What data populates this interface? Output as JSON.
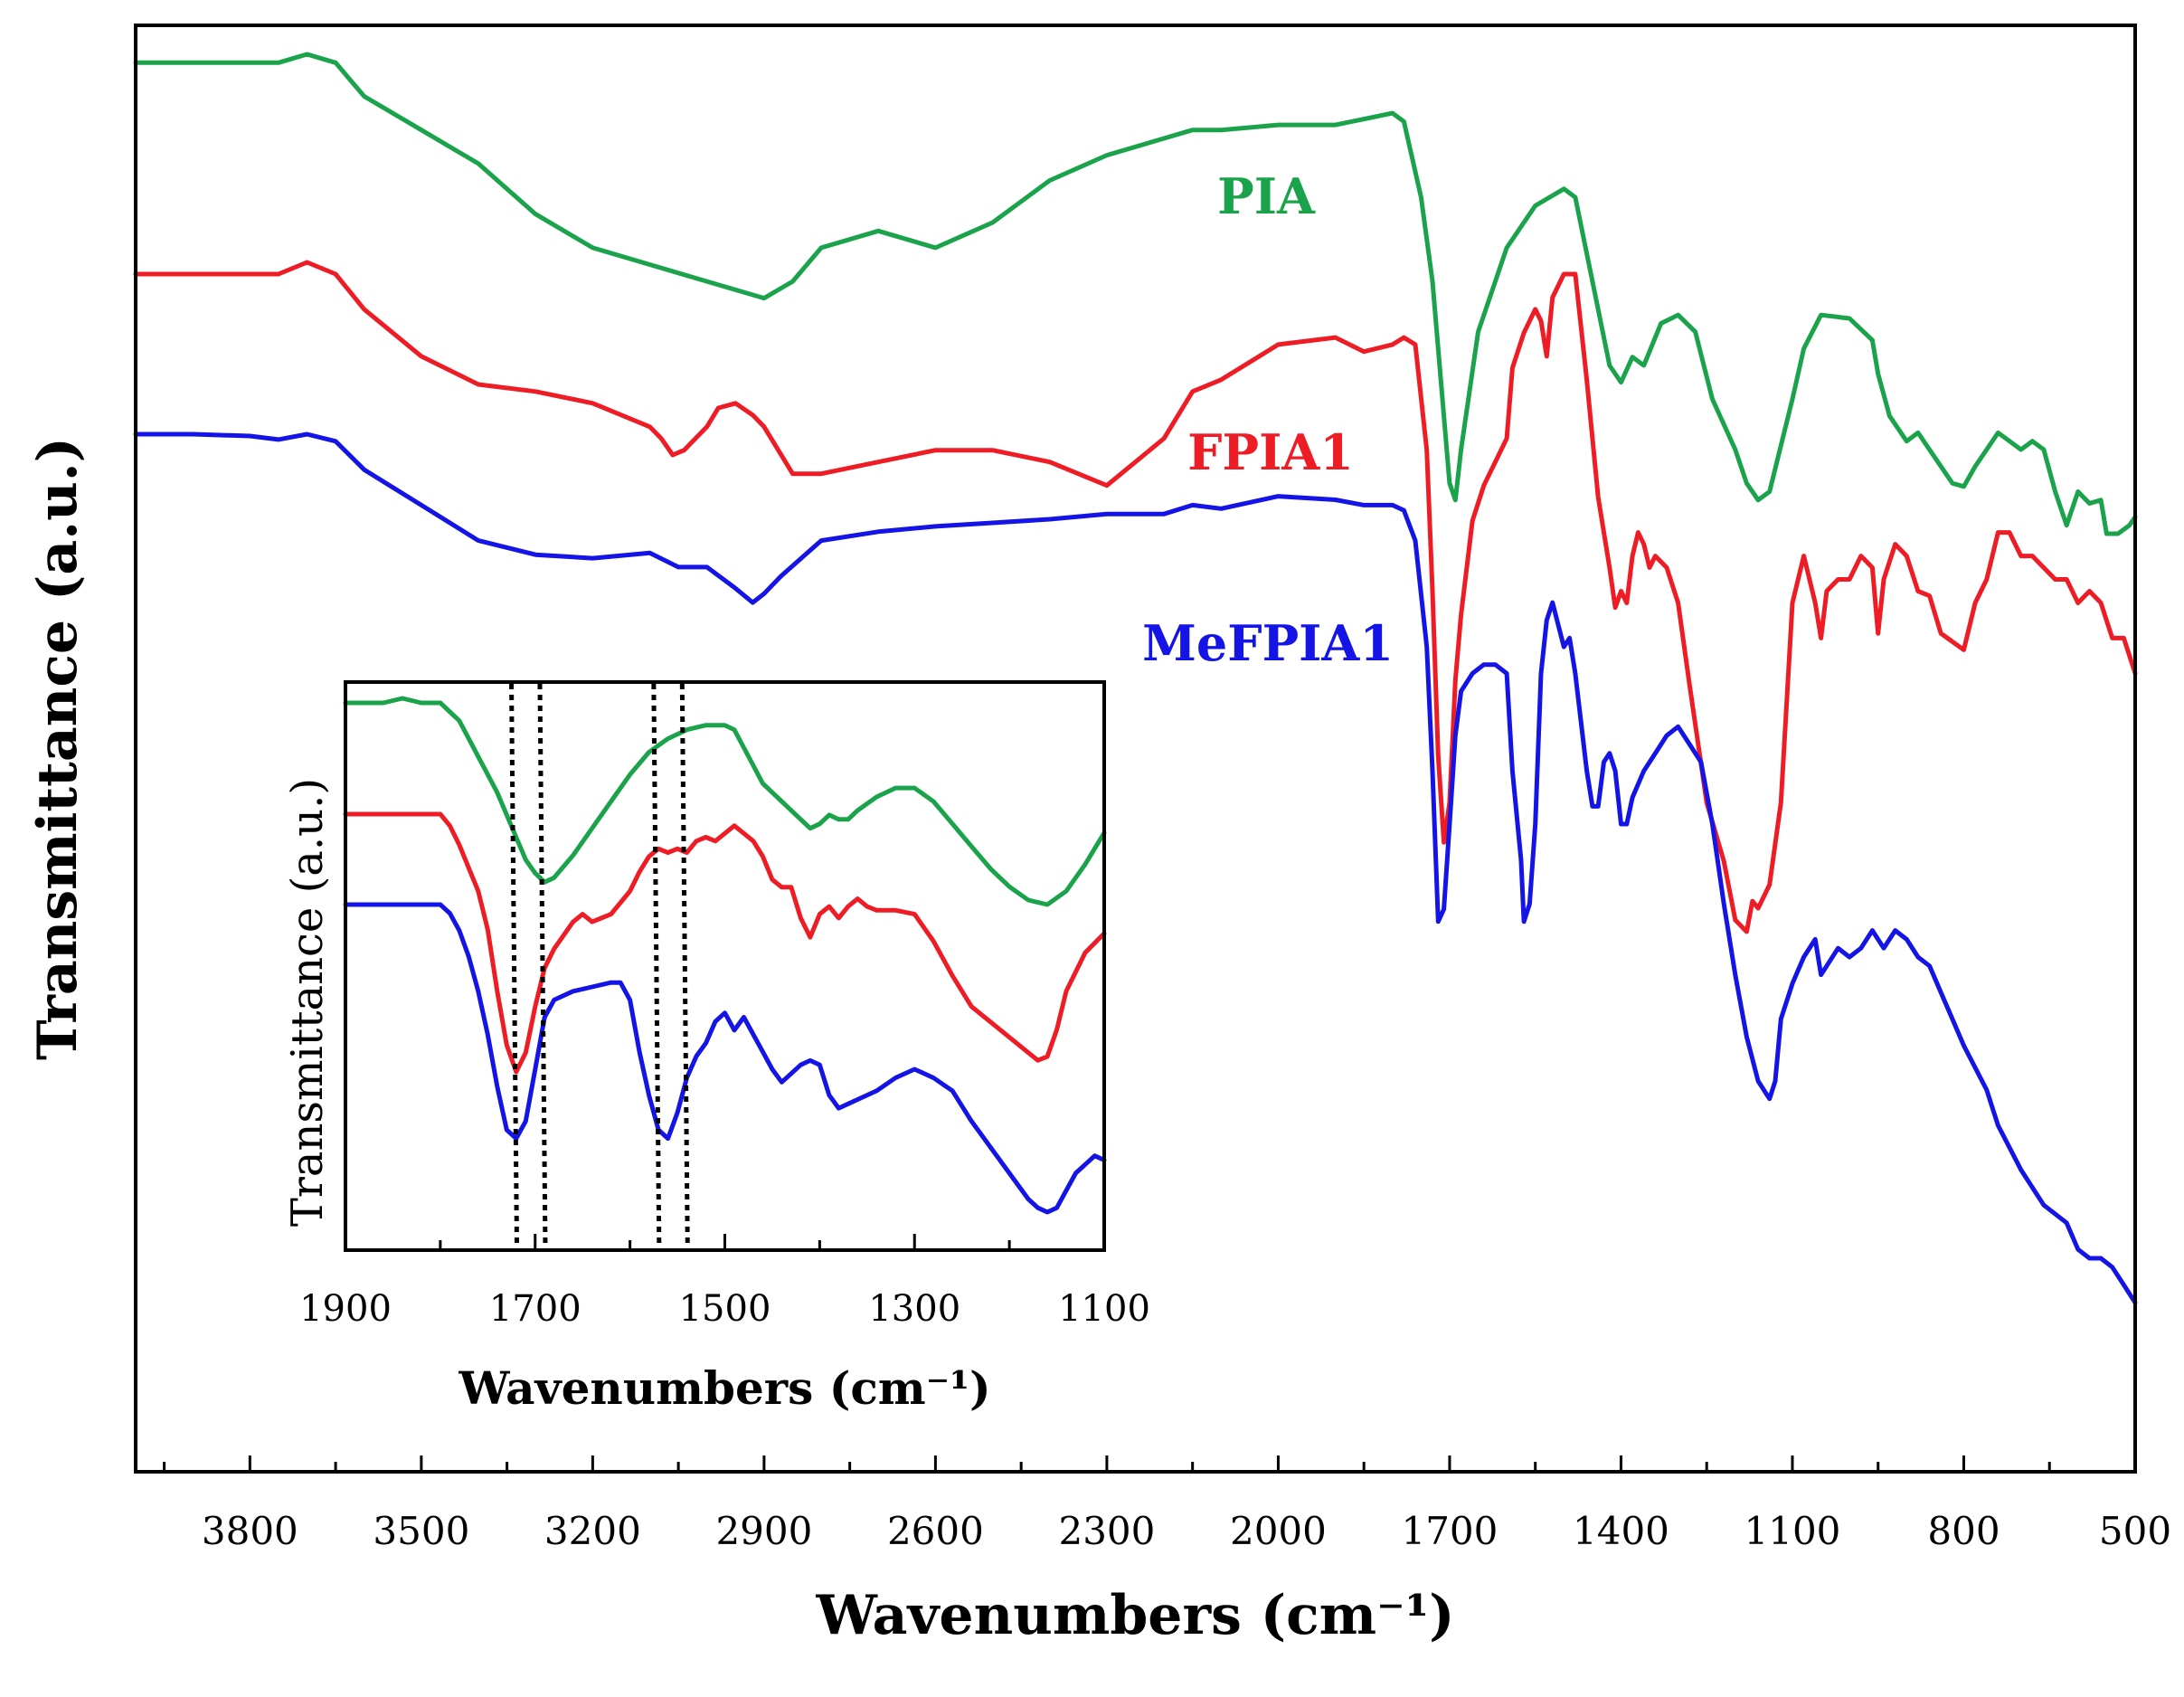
{
  "chart_data": [
    {
      "type": "line",
      "name": "main",
      "title": "",
      "xlabel": "Wavenumbers (cm⁻¹)",
      "ylabel": "Transmittance (a.u.)",
      "xlim": [
        4000,
        500
      ],
      "x_reversed": true,
      "ylim": [
        0,
        100
      ],
      "x_ticks": [
        3800,
        3500,
        3200,
        2900,
        2600,
        2300,
        2000,
        1700,
        1400,
        1100,
        800,
        500
      ],
      "x_ticks_labels": [
        "3800",
        "3500",
        "3200",
        "2900",
        "2600",
        "2300",
        "2000",
        "1700",
        "1400",
        "1100",
        "800",
        "500"
      ],
      "y_ticks_visible": false,
      "legend": "inline labels",
      "series": [
        {
          "name": "PIA",
          "color": "#1aa34a",
          "x": [
            4000,
            3900,
            3800,
            3750,
            3700,
            3650,
            3600,
            3500,
            3400,
            3300,
            3200,
            3100,
            3000,
            2950,
            2900,
            2850,
            2800,
            2700,
            2600,
            2500,
            2400,
            2300,
            2200,
            2150,
            2100,
            2000,
            1900,
            1800,
            1780,
            1750,
            1730,
            1710,
            1700,
            1690,
            1680,
            1650,
            1600,
            1550,
            1500,
            1480,
            1450,
            1420,
            1400,
            1380,
            1360,
            1330,
            1300,
            1270,
            1240,
            1200,
            1180,
            1160,
            1140,
            1100,
            1080,
            1050,
            1000,
            960,
            950,
            930,
            900,
            880,
            850,
            820,
            800,
            780,
            760,
            740,
            700,
            680,
            660,
            640,
            620,
            600,
            580,
            560,
            550,
            530,
            510,
            500
          ],
          "y": [
            95,
            95,
            95,
            95,
            95.5,
            95,
            93,
            91,
            89,
            86,
            84,
            83,
            82,
            81.5,
            81,
            82,
            84,
            85,
            84,
            85.5,
            88,
            89.5,
            90.5,
            91,
            91,
            91.3,
            91.3,
            92,
            91.5,
            87,
            82,
            74,
            70,
            69,
            72,
            79,
            84,
            86.5,
            87.5,
            87,
            82,
            77,
            76,
            77.5,
            77,
            79.5,
            80,
            79,
            75,
            72,
            70,
            69,
            69.5,
            75,
            78,
            80,
            79.8,
            78.5,
            76.5,
            74,
            72.5,
            73,
            71.5,
            70,
            69.8,
            71,
            72,
            73,
            72,
            72.5,
            72,
            69.5,
            67.5,
            69.5,
            68.8,
            69,
            67,
            67,
            67.5,
            68
          ]
        },
        {
          "name": "FPIA1",
          "color": "#ee1c25",
          "x": [
            4000,
            3900,
            3800,
            3750,
            3700,
            3650,
            3600,
            3500,
            3400,
            3300,
            3200,
            3100,
            3080,
            3060,
            3040,
            3000,
            2980,
            2950,
            2920,
            2900,
            2850,
            2800,
            2700,
            2600,
            2500,
            2400,
            2300,
            2200,
            2150,
            2100,
            2000,
            1900,
            1850,
            1800,
            1780,
            1760,
            1740,
            1730,
            1720,
            1710,
            1700,
            1690,
            1680,
            1660,
            1640,
            1600,
            1590,
            1570,
            1550,
            1540,
            1530,
            1520,
            1500,
            1480,
            1460,
            1440,
            1420,
            1410,
            1400,
            1390,
            1380,
            1370,
            1360,
            1350,
            1340,
            1320,
            1300,
            1280,
            1250,
            1220,
            1200,
            1180,
            1170,
            1160,
            1140,
            1120,
            1100,
            1080,
            1060,
            1050,
            1040,
            1020,
            1000,
            980,
            960,
            950,
            940,
            920,
            900,
            880,
            860,
            840,
            800,
            780,
            760,
            740,
            720,
            700,
            680,
            660,
            640,
            620,
            600,
            580,
            560,
            540,
            520,
            500
          ],
          "y": [
            85.5,
            85.5,
            85.5,
            85.5,
            86,
            85.5,
            84,
            82,
            80.8,
            80.5,
            80,
            79,
            78.5,
            77.8,
            78,
            79,
            79.8,
            80,
            79.5,
            79,
            77,
            77,
            77.5,
            78,
            78,
            77.5,
            76.5,
            78.5,
            80.5,
            81,
            82.5,
            82.8,
            82.2,
            82.5,
            82.8,
            82.5,
            78,
            72,
            65,
            61.3,
            63,
            68.2,
            71,
            75,
            76.5,
            78.5,
            81.5,
            83,
            84,
            83.5,
            82,
            84.5,
            85.5,
            85.5,
            81,
            76,
            73,
            71.3,
            72,
            71.5,
            73.5,
            74.5,
            74,
            73,
            73.5,
            73,
            71.5,
            68,
            63,
            60.5,
            58,
            57.5,
            58.8,
            58.5,
            59.5,
            63,
            71.5,
            73.5,
            71.5,
            70,
            72,
            72.5,
            72.5,
            73.5,
            73,
            70.2,
            72.5,
            74,
            73.5,
            72,
            71.8,
            70.2,
            69.5,
            71.5,
            72.5,
            74.5,
            74.5,
            73.5,
            73.5,
            73,
            72.5,
            72.5,
            71.5,
            72,
            71.5,
            70,
            70,
            68.5
          ]
        },
        {
          "name": "MeFPIA1",
          "color": "#1414e6",
          "x": [
            4000,
            3900,
            3800,
            3750,
            3700,
            3650,
            3600,
            3500,
            3400,
            3300,
            3200,
            3100,
            3050,
            3000,
            2950,
            2920,
            2900,
            2870,
            2800,
            2700,
            2600,
            2500,
            2400,
            2300,
            2200,
            2150,
            2100,
            2000,
            1900,
            1850,
            1800,
            1780,
            1760,
            1740,
            1730,
            1720,
            1710,
            1700,
            1690,
            1680,
            1660,
            1640,
            1620,
            1600,
            1590,
            1575,
            1570,
            1560,
            1550,
            1540,
            1530,
            1520,
            1500,
            1490,
            1480,
            1460,
            1450,
            1440,
            1430,
            1420,
            1410,
            1400,
            1390,
            1380,
            1360,
            1340,
            1320,
            1300,
            1280,
            1260,
            1240,
            1220,
            1200,
            1180,
            1160,
            1140,
            1130,
            1120,
            1100,
            1080,
            1060,
            1050,
            1040,
            1020,
            1000,
            980,
            960,
            950,
            940,
            920,
            900,
            880,
            860,
            840,
            820,
            800,
            760,
            740,
            700,
            660,
            620,
            600,
            580,
            560,
            540,
            520,
            500
          ],
          "y": [
            77,
            77,
            76.9,
            76.7,
            77,
            76.6,
            75,
            73,
            71,
            70.2,
            70,
            70.3,
            69.5,
            69.5,
            68.3,
            67.5,
            68,
            69,
            71,
            71.5,
            71.8,
            72,
            72.2,
            72.5,
            72.5,
            73,
            72.8,
            73.5,
            73.3,
            73,
            73,
            72.7,
            71,
            65,
            58,
            49.5,
            50.2,
            55,
            60,
            62.5,
            63.5,
            64,
            64,
            63.5,
            58,
            53,
            49.5,
            50.5,
            55,
            63.5,
            66.5,
            67.5,
            65,
            65.5,
            63.5,
            58,
            56,
            56,
            58.5,
            59,
            58,
            55,
            55,
            56.5,
            58,
            59,
            60,
            60.5,
            59.5,
            58.5,
            55,
            50.5,
            46.5,
            43,
            40.5,
            39.5,
            40.5,
            44,
            46,
            47.5,
            48.5,
            46.5,
            47,
            48,
            47.5,
            48,
            49,
            48.5,
            48,
            49,
            48.5,
            47.5,
            47,
            45.5,
            44,
            42.5,
            40,
            38,
            35.5,
            33.5,
            32.5,
            31,
            30.5,
            30.5,
            30,
            29,
            28
          ]
        }
      ],
      "annotations": [
        {
          "text": "PIA",
          "color": "#1aa34a"
        },
        {
          "text": "FPIA1",
          "color": "#ee1c25"
        },
        {
          "text": "MeFPIA1",
          "color": "#1414e6"
        }
      ]
    },
    {
      "type": "line",
      "name": "inset",
      "title": "",
      "xlabel": "Wavenumbers (cm⁻¹)",
      "ylabel": "Transmittance (a.u.)",
      "xlim": [
        1900,
        1100
      ],
      "x_reversed": true,
      "ylim": [
        0,
        100
      ],
      "x_ticks": [
        1900,
        1700,
        1500,
        1300,
        1100
      ],
      "x_ticks_labels": [
        "1900",
        "1700",
        "1500",
        "1300",
        "1100"
      ],
      "y_ticks_visible": false,
      "reference_lines": [
        1725,
        1695,
        1575,
        1545
      ],
      "reference_line_style": "dotted",
      "series": [
        {
          "name": "PIA",
          "color": "#1aa34a",
          "x": [
            1900,
            1880,
            1860,
            1840,
            1820,
            1800,
            1780,
            1760,
            1740,
            1720,
            1710,
            1700,
            1690,
            1680,
            1660,
            1640,
            1620,
            1600,
            1580,
            1560,
            1540,
            1520,
            1500,
            1490,
            1480,
            1460,
            1440,
            1420,
            1410,
            1400,
            1390,
            1380,
            1370,
            1360,
            1340,
            1320,
            1300,
            1280,
            1260,
            1240,
            1220,
            1200,
            1180,
            1160,
            1140,
            1120,
            1100
          ],
          "y": [
            95,
            95,
            95,
            95.5,
            95,
            95,
            93,
            89,
            85,
            80,
            77.5,
            76,
            75,
            75.5,
            78,
            81,
            84,
            87,
            89.5,
            91,
            92,
            92.5,
            92.5,
            92,
            90,
            86,
            84,
            82,
            81,
            81.5,
            82.5,
            82,
            82,
            83,
            84.5,
            85.5,
            85.5,
            84,
            81.5,
            79,
            76.5,
            74.5,
            73,
            72.5,
            74,
            77,
            80.5
          ]
        },
        {
          "name": "FPIA1",
          "color": "#ee1c25",
          "x": [
            1900,
            1880,
            1860,
            1840,
            1820,
            1800,
            1790,
            1780,
            1770,
            1760,
            1750,
            1740,
            1730,
            1720,
            1710,
            1700,
            1690,
            1680,
            1660,
            1650,
            1640,
            1620,
            1600,
            1590,
            1580,
            1570,
            1560,
            1550,
            1540,
            1530,
            1520,
            1510,
            1500,
            1490,
            1470,
            1460,
            1450,
            1440,
            1430,
            1420,
            1410,
            1400,
            1390,
            1380,
            1370,
            1360,
            1350,
            1340,
            1320,
            1300,
            1280,
            1260,
            1240,
            1220,
            1200,
            1180,
            1170,
            1160,
            1150,
            1140,
            1120,
            1100
          ],
          "y": [
            80,
            80,
            80,
            80,
            80,
            80,
            78.5,
            76,
            73,
            70,
            65,
            57,
            50,
            46.5,
            49,
            55,
            60,
            62.5,
            66,
            67,
            66,
            67,
            70,
            72.5,
            74.5,
            75.5,
            75,
            75.5,
            75,
            76.5,
            77,
            76.5,
            77.5,
            78.5,
            76.5,
            74.5,
            71.5,
            70.5,
            70.5,
            66.5,
            64,
            67,
            68,
            66.5,
            68,
            69,
            68,
            67.5,
            67.5,
            67,
            63.5,
            59,
            55,
            53,
            51,
            49,
            48,
            48.5,
            52,
            57,
            62,
            64.5
          ]
        },
        {
          "name": "MeFPIA1",
          "color": "#1414e6",
          "x": [
            1900,
            1880,
            1860,
            1840,
            1820,
            1800,
            1790,
            1780,
            1770,
            1760,
            1750,
            1740,
            1730,
            1720,
            1710,
            1700,
            1690,
            1680,
            1660,
            1640,
            1620,
            1610,
            1600,
            1590,
            1580,
            1570,
            1560,
            1550,
            1540,
            1530,
            1520,
            1510,
            1500,
            1490,
            1480,
            1470,
            1460,
            1450,
            1440,
            1430,
            1420,
            1410,
            1400,
            1390,
            1380,
            1370,
            1360,
            1340,
            1320,
            1300,
            1280,
            1260,
            1240,
            1220,
            1200,
            1180,
            1170,
            1160,
            1150,
            1140,
            1130,
            1120,
            1110,
            1100
          ],
          "y": [
            62,
            62,
            62,
            62,
            62,
            62,
            61,
            59,
            56,
            52,
            47,
            41,
            36,
            35,
            37,
            43,
            49,
            51,
            52,
            52.5,
            53,
            53,
            51,
            45,
            40,
            36,
            35,
            38,
            42,
            44.5,
            46,
            48.5,
            49.5,
            47.5,
            49,
            47,
            45,
            43,
            41.5,
            42.5,
            43.5,
            44,
            43.5,
            40,
            38.5,
            39,
            39.5,
            40.5,
            42,
            43,
            42,
            40.5,
            37,
            34,
            31,
            28,
            27,
            26.5,
            27,
            29,
            31,
            32,
            33,
            32.5
          ]
        }
      ]
    }
  ]
}
